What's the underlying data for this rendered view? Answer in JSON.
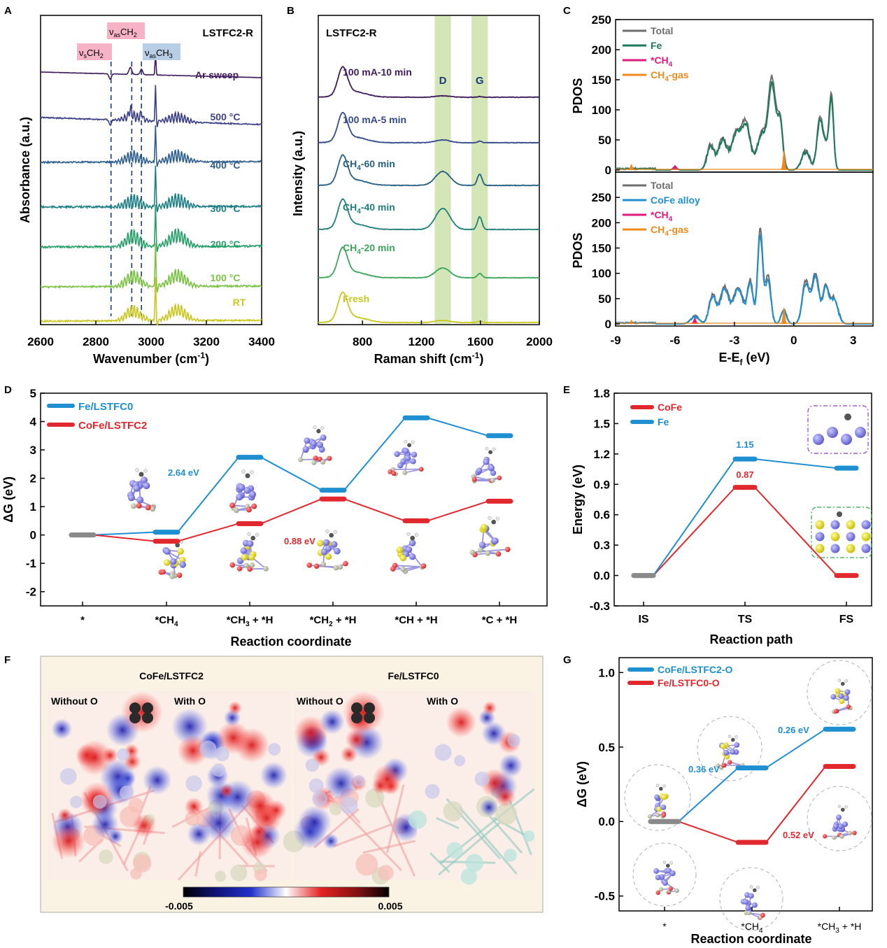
{
  "panel_letters": {
    "A": "A",
    "B": "B",
    "C": "C",
    "D": "D",
    "E": "E",
    "F": "F",
    "G": "G"
  },
  "chart_data": [
    {
      "id": "A",
      "type": "line",
      "title": "LSTFC2-R",
      "xlabel": "Wavenumber (cm",
      "xlabel_sup": "-1",
      "xlabel_tail": ")",
      "ylabel": "Absorbance (a.u.)",
      "xlim": [
        2600,
        3400
      ],
      "xticks": [
        "2600",
        "2800",
        "3000",
        "3200",
        "3400"
      ],
      "series": [
        {
          "name": "Ar sweep",
          "color": "#3f1b5c"
        },
        {
          "name": "500 °C",
          "color": "#3b3f87"
        },
        {
          "name": "400 °C",
          "color": "#2f5f8e"
        },
        {
          "name": "300 °C",
          "color": "#1e8085"
        },
        {
          "name": "200 °C",
          "color": "#28a06a"
        },
        {
          "name": "100 °C",
          "color": "#7cc245"
        },
        {
          "name": "RT",
          "color": "#c9c71f"
        }
      ],
      "dashed_lines_x": [
        2855,
        2930,
        2965
      ],
      "annotations": [
        {
          "main": "ν",
          "sub": "s",
          "tail": "CH",
          "tail_sub": "2",
          "bg": "#f6b3c6"
        },
        {
          "main": "ν",
          "sub": "as",
          "tail": "CH",
          "tail_sub": "2",
          "bg": "#f6b3c6"
        },
        {
          "main": "ν",
          "sub": "as",
          "tail": "CH",
          "tail_sub": "3",
          "bg": "#b8cde6"
        }
      ]
    },
    {
      "id": "B",
      "type": "line",
      "title": "LSTFC2-R",
      "xlabel": "Raman shift (cm",
      "xlabel_sup": "-1",
      "xlabel_tail": ")",
      "ylabel": "Intensity (a.u.)",
      "xlim": [
        500,
        2000
      ],
      "xticks": [
        "800",
        "1200",
        "1600",
        "2000"
      ],
      "bands": [
        {
          "label": "D",
          "x": [
            1290,
            1400
          ]
        },
        {
          "label": "G",
          "x": [
            1540,
            1650
          ]
        }
      ],
      "series": [
        {
          "name": "100 mA-10 min",
          "color": "#3f1b5c"
        },
        {
          "name": "100 mA-5 min",
          "color": "#344a8a"
        },
        {
          "name": "CH",
          "name_sub": "4",
          "name_tail": "-60 min",
          "color": "#255f84"
        },
        {
          "name": "CH",
          "name_sub": "4",
          "name_tail": "-40 min",
          "color": "#1e8078"
        },
        {
          "name": "CH",
          "name_sub": "4",
          "name_tail": "-20 min",
          "color": "#3aa65a"
        },
        {
          "name": "Fresh",
          "color": "#c9c71f"
        }
      ]
    },
    {
      "id": "C",
      "type": "line",
      "xlabel": "E-E",
      "xlabel_sub": "f",
      "xlabel_tail": " (eV)",
      "xlim": [
        -9,
        4
      ],
      "xticks": [
        "-9",
        "-6",
        "-3",
        "0",
        "3"
      ],
      "top": {
        "ylabel": "PDOS",
        "ylim": [
          0,
          250
        ],
        "yticks": [
          "0",
          "50",
          "100",
          "150",
          "200",
          "250"
        ],
        "legend": [
          {
            "name": "Total",
            "color": "#6e6e6e"
          },
          {
            "name": "Fe",
            "color": "#1a7a5a"
          },
          {
            "name": "*CH",
            "sub": "4",
            "color": "#e0197d"
          },
          {
            "name": "CH",
            "sub": "4",
            "tail": "-gas",
            "color": "#f08a1c"
          }
        ]
      },
      "bottom": {
        "ylabel": "PDOS",
        "ylim": [
          0,
          300
        ],
        "yticks": [
          "0",
          "50",
          "100",
          "150",
          "200",
          "250"
        ],
        "legend": [
          {
            "name": "Total",
            "color": "#6e6e6e"
          },
          {
            "name": "CoFe alloy",
            "color": "#1e8fd0"
          },
          {
            "name": "*CH",
            "sub": "4",
            "color": "#e0197d"
          },
          {
            "name": "CH",
            "sub": "4",
            "tail": "-gas",
            "color": "#f08a1c"
          }
        ]
      }
    },
    {
      "id": "D",
      "type": "line",
      "xlabel": "Reaction coordinate",
      "ylabel": "ΔG (eV)",
      "ylim": [
        -2.5,
        5
      ],
      "yticks": [
        "5",
        "4",
        "3",
        "2",
        "1",
        "0",
        "-1",
        "-2"
      ],
      "categories": [
        {
          "t": "*"
        },
        {
          "t": "*CH",
          "s": "4"
        },
        {
          "t": "*CH",
          "s": "3",
          "e": " + *H"
        },
        {
          "t": "*CH",
          "s": "2",
          "e": " + *H"
        },
        {
          "t": "*CH + *H"
        },
        {
          "t": "*C + *H"
        }
      ],
      "series": [
        {
          "name": "Fe/LSTFC0",
          "color": "#1e8fd0",
          "values": [
            0,
            0.1,
            2.74,
            1.58,
            4.13,
            3.5
          ]
        },
        {
          "name": "CoFe/LSTFC2",
          "color": "#e0282e",
          "values": [
            0,
            -0.22,
            0.4,
            1.27,
            0.5,
            1.19
          ]
        }
      ],
      "annotations": [
        {
          "text": "2.64 eV",
          "color": "#1e8fd0"
        },
        {
          "text": "0.88 eV",
          "color": "#e0282e"
        }
      ]
    },
    {
      "id": "E",
      "type": "line",
      "xlabel": "Reaction path",
      "ylabel": "Energy (eV)",
      "ylim": [
        -0.3,
        1.8
      ],
      "yticks": [
        "1.8",
        "1.5",
        "1.2",
        "0.9",
        "0.6",
        "0.3",
        "0.0",
        "-0.3"
      ],
      "categories": [
        "IS",
        "TS",
        "FS"
      ],
      "series": [
        {
          "name": "CoFe",
          "color": "#e0282e",
          "values": [
            0,
            0.87,
            0
          ]
        },
        {
          "name": "Fe",
          "color": "#1e8fd0",
          "values": [
            0,
            1.15,
            1.06
          ]
        }
      ],
      "annotations": [
        {
          "text": "1.15",
          "color": "#1e8fd0"
        },
        {
          "text": "0.87",
          "color": "#e0282e"
        }
      ]
    },
    {
      "id": "F",
      "type": "heatmap",
      "groups": [
        "CoFe/LSTFC2",
        "Fe/LSTFC0"
      ],
      "subpanels": [
        "Without O",
        "With O",
        "Without O",
        "With O"
      ],
      "colorbar": {
        "min": "-0.005",
        "max": "0.005"
      }
    },
    {
      "id": "G",
      "type": "line",
      "xlabel": "Reaction coordinate",
      "ylabel": "ΔG (eV)",
      "ylim": [
        -0.6,
        1.1
      ],
      "yticks": [
        "1.0",
        "0.5",
        "0.0",
        "-0.5"
      ],
      "categories": [
        {
          "t": "*"
        },
        {
          "t": "*CH",
          "s": "4"
        },
        {
          "t": "*CH",
          "s": "3",
          "e": " + *H"
        }
      ],
      "series": [
        {
          "name": "CoFe/LSTFC2-O",
          "color": "#1e8fd0",
          "values": [
            0,
            0.36,
            0.62
          ]
        },
        {
          "name": "Fe/LSTFC0-O",
          "color": "#e0282e",
          "values": [
            0,
            -0.14,
            0.37
          ]
        }
      ],
      "annotations": [
        {
          "text": "0.36 eV",
          "color": "#1e8fd0"
        },
        {
          "text": "0.26 eV",
          "color": "#1e8fd0"
        },
        {
          "text": "0.52 eV",
          "color": "#e0282e"
        }
      ]
    }
  ]
}
